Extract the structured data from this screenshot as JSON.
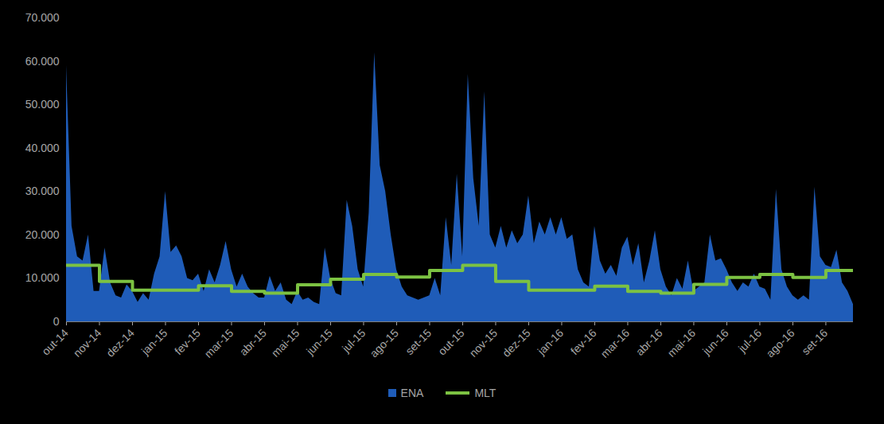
{
  "chart_data": {
    "type": "area",
    "categories": [
      "out-14",
      null,
      null,
      null,
      null,
      null,
      "nov-14",
      null,
      null,
      null,
      null,
      null,
      "dez-14",
      null,
      null,
      null,
      null,
      null,
      "jan-15",
      null,
      null,
      null,
      null,
      null,
      "fev-15",
      null,
      null,
      null,
      null,
      null,
      "mar-15",
      null,
      null,
      null,
      null,
      null,
      "abr-15",
      null,
      null,
      null,
      null,
      null,
      "mai-15",
      null,
      null,
      null,
      null,
      null,
      "jun-15",
      null,
      null,
      null,
      null,
      null,
      "jul-15",
      null,
      null,
      null,
      null,
      null,
      "ago-15",
      null,
      null,
      null,
      null,
      null,
      "set-15",
      null,
      null,
      null,
      null,
      null,
      "out-15",
      null,
      null,
      null,
      null,
      null,
      "nov-15",
      null,
      null,
      null,
      null,
      null,
      "dez-15",
      null,
      null,
      null,
      null,
      null,
      "jan-16",
      null,
      null,
      null,
      null,
      null,
      "fev-16",
      null,
      null,
      null,
      null,
      null,
      "mar-16",
      null,
      null,
      null,
      null,
      null,
      "abr-16",
      null,
      null,
      null,
      null,
      null,
      "mai-16",
      null,
      null,
      null,
      null,
      null,
      "jun-16",
      null,
      null,
      null,
      null,
      null,
      "jul-16",
      null,
      null,
      null,
      null,
      null,
      "ago-16",
      null,
      null,
      null,
      null,
      null,
      "set-16",
      null,
      null,
      null,
      null,
      null
    ],
    "series": [
      {
        "name": "ENA",
        "type": "area",
        "color": "#1f5cb8",
        "values": [
          59000,
          22000,
          15000,
          14000,
          20000,
          7000,
          7000,
          17000,
          9000,
          6000,
          5500,
          8500,
          7000,
          4500,
          6500,
          5000,
          11000,
          15000,
          30000,
          16000,
          17500,
          15000,
          10000,
          9500,
          11000,
          7000,
          12000,
          9000,
          13000,
          18500,
          12000,
          8000,
          11000,
          8000,
          6500,
          5500,
          5500,
          10500,
          7000,
          9000,
          5000,
          4000,
          7000,
          5000,
          5500,
          4500,
          4000,
          17000,
          10000,
          6500,
          6000,
          28000,
          22000,
          12000,
          8000,
          25000,
          62000,
          36000,
          30000,
          20000,
          12000,
          8000,
          6000,
          5500,
          5000,
          5500,
          6000,
          10000,
          6000,
          24000,
          13000,
          34000,
          15000,
          57000,
          33000,
          22000,
          53000,
          20000,
          17000,
          22000,
          17000,
          21000,
          18000,
          20000,
          29000,
          18000,
          23000,
          20000,
          24000,
          20000,
          24000,
          19000,
          20000,
          12000,
          9000,
          8000,
          22000,
          14000,
          11000,
          13000,
          10500,
          17000,
          19500,
          13000,
          18000,
          9000,
          14000,
          21000,
          12000,
          8000,
          6000,
          10000,
          7500,
          14000,
          7000,
          8000,
          9000,
          20000,
          14000,
          14500,
          12000,
          9000,
          7000,
          9000,
          8000,
          11000,
          8000,
          7500,
          5000,
          30500,
          12000,
          8000,
          6000,
          5000,
          6000,
          5000,
          31000,
          15000,
          13000,
          12500,
          16500,
          9000,
          7000,
          4000
        ]
      },
      {
        "name": "MLT",
        "type": "line",
        "color": "#7cc242",
        "values": [
          13000,
          13000,
          13000,
          13000,
          13000,
          13000,
          9300,
          9300,
          9300,
          9300,
          9300,
          9300,
          7300,
          7300,
          7300,
          7300,
          7300,
          7300,
          7300,
          7300,
          7300,
          7300,
          7300,
          7300,
          8300,
          8300,
          8300,
          8300,
          8300,
          8300,
          7000,
          7000,
          7000,
          7000,
          7000,
          7000,
          6600,
          6600,
          6600,
          6600,
          6600,
          6600,
          8500,
          8500,
          8500,
          8500,
          8500,
          8500,
          9800,
          9800,
          9800,
          9800,
          9800,
          9800,
          10900,
          10900,
          10900,
          10900,
          10900,
          10900,
          10300,
          10300,
          10300,
          10300,
          10300,
          10300,
          11800,
          11800,
          11800,
          11800,
          11800,
          11800,
          13000,
          13000,
          13000,
          13000,
          13000,
          13000,
          9300,
          9300,
          9300,
          9300,
          9300,
          9300,
          7300,
          7300,
          7300,
          7300,
          7300,
          7300,
          7300,
          7300,
          7300,
          7300,
          7300,
          7300,
          8200,
          8200,
          8200,
          8200,
          8200,
          8200,
          7000,
          7000,
          7000,
          7000,
          7000,
          7000,
          6600,
          6600,
          6600,
          6600,
          6600,
          6600,
          8600,
          8600,
          8600,
          8600,
          8600,
          8600,
          10200,
          10200,
          10200,
          10200,
          10200,
          10200,
          10900,
          10900,
          10900,
          10900,
          10900,
          10900,
          10200,
          10200,
          10200,
          10200,
          10200,
          10200,
          11800,
          11800,
          11800,
          11800,
          11800,
          11800
        ]
      }
    ],
    "ylim": [
      0,
      70000
    ],
    "yticks": [
      0,
      {
        "value": 10000,
        "label": "10.000"
      },
      {
        "value": 20000,
        "label": "20.000"
      },
      {
        "value": 30000,
        "label": "30.000"
      },
      {
        "value": 40000,
        "label": "40.000"
      },
      {
        "value": 50000,
        "label": "50.000"
      },
      {
        "value": 60000,
        "label": "60.000"
      },
      {
        "value": 70000,
        "label": "70.000"
      }
    ],
    "grid": false,
    "legend": "bottom"
  }
}
